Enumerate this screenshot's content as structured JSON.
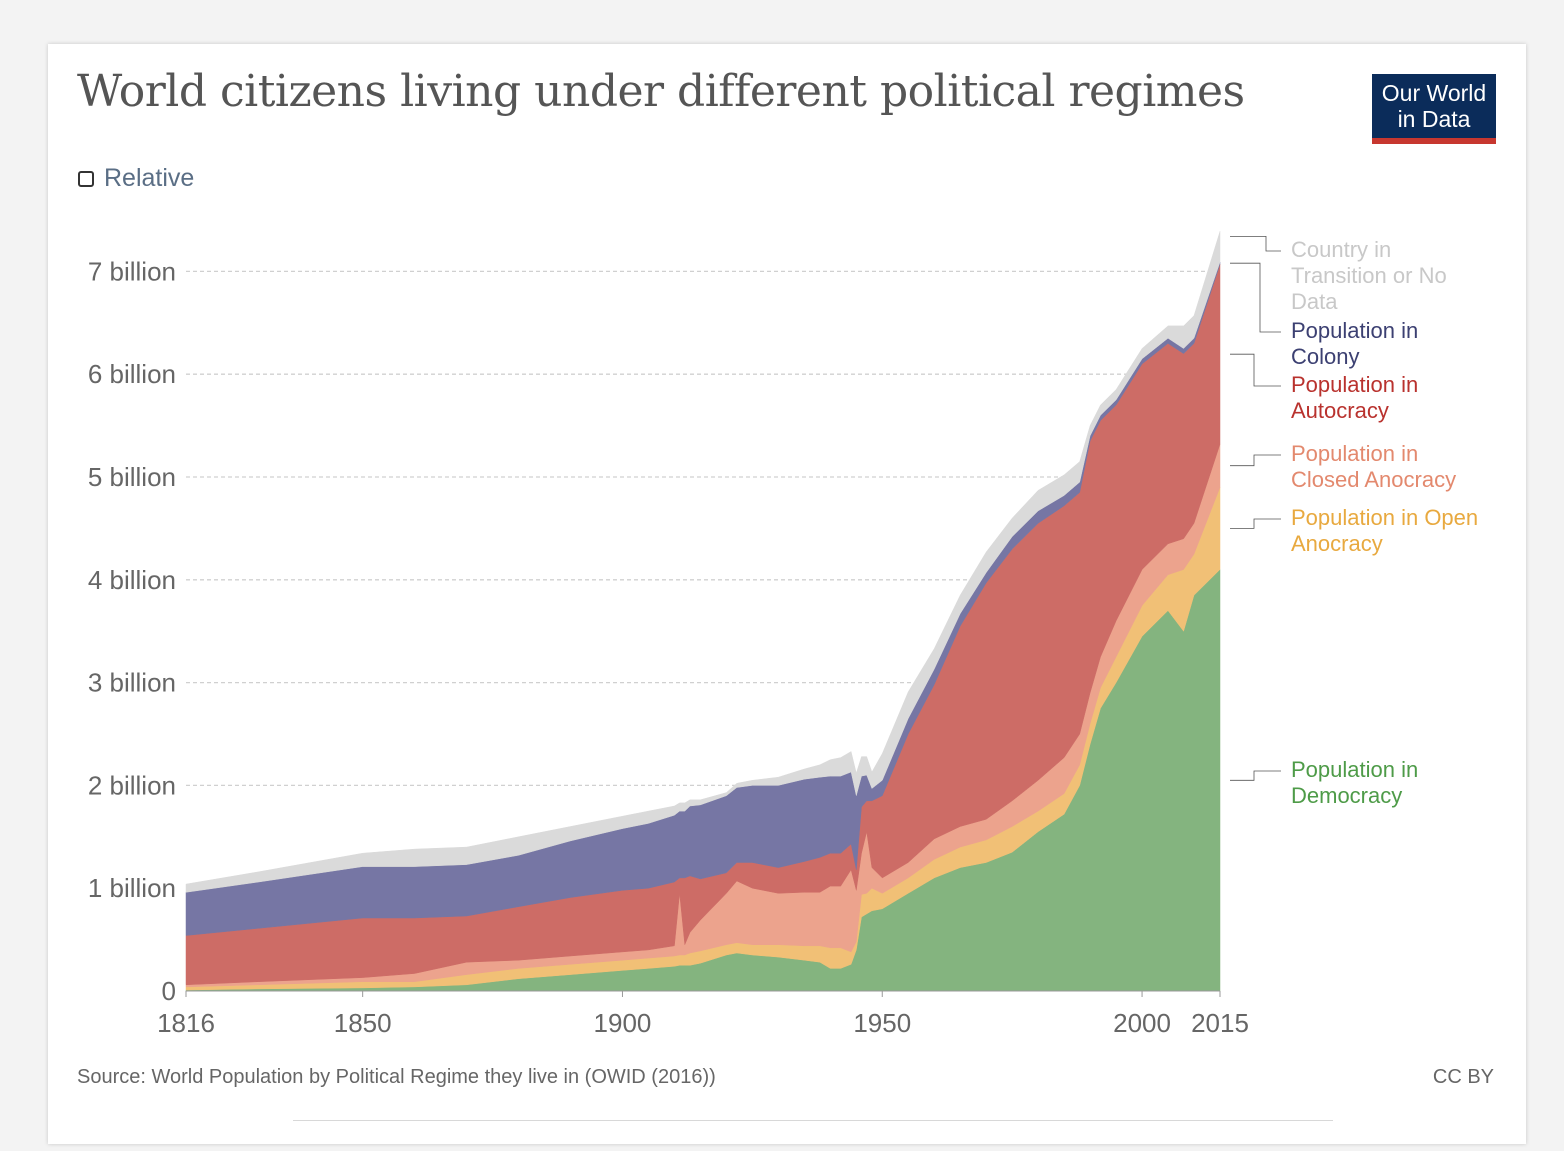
{
  "header": {
    "title": "World citizens living under different political regimes",
    "logo_line1": "Our World",
    "logo_line2": "in Data"
  },
  "controls": {
    "relative_label": "Relative",
    "relative_checked": false
  },
  "footer": {
    "source": "Source: World Population by Political Regime they live in (OWID (2016))",
    "license": "CC BY"
  },
  "chart_data": {
    "type": "area",
    "stacked": true,
    "title": "World citizens living under different political regimes",
    "xlabel": "",
    "ylabel": "",
    "xlim": [
      1816,
      2015
    ],
    "ylim": [
      0,
      7000000000
    ],
    "x_ticks": [
      "1816",
      "1850",
      "1900",
      "1950",
      "2000",
      "2015"
    ],
    "y_ticks": [
      "0",
      "1 billion",
      "2 billion",
      "3 billion",
      "4 billion",
      "5 billion",
      "6 billion",
      "7 billion"
    ],
    "grid": true,
    "legend_position": "right",
    "x": [
      1816,
      1830,
      1850,
      1860,
      1870,
      1880,
      1890,
      1900,
      1905,
      1910,
      1911,
      1912,
      1913,
      1915,
      1920,
      1922,
      1925,
      1930,
      1935,
      1938,
      1940,
      1942,
      1944,
      1945,
      1946,
      1947,
      1948,
      1950,
      1955,
      1960,
      1965,
      1970,
      1975,
      1980,
      1985,
      1988,
      1990,
      1992,
      1995,
      2000,
      2005,
      2008,
      2010,
      2015
    ],
    "series": [
      {
        "name": "Population in Democracy",
        "color": "#84b47f",
        "values": [
          0.01,
          0.02,
          0.03,
          0.04,
          0.06,
          0.12,
          0.16,
          0.2,
          0.22,
          0.24,
          0.25,
          0.25,
          0.25,
          0.27,
          0.35,
          0.37,
          0.35,
          0.33,
          0.3,
          0.28,
          0.22,
          0.22,
          0.26,
          0.4,
          0.72,
          0.75,
          0.78,
          0.8,
          0.95,
          1.1,
          1.2,
          1.25,
          1.35,
          1.55,
          1.72,
          2.0,
          2.4,
          2.75,
          3.0,
          3.45,
          3.7,
          3.5,
          3.85,
          4.1
        ]
      },
      {
        "name": "Population in Open Anocracy",
        "color": "#f1c076",
        "values": [
          0.03,
          0.04,
          0.06,
          0.05,
          0.1,
          0.1,
          0.1,
          0.1,
          0.1,
          0.1,
          0.1,
          0.1,
          0.12,
          0.12,
          0.1,
          0.1,
          0.1,
          0.12,
          0.14,
          0.16,
          0.2,
          0.2,
          0.12,
          0.08,
          0.22,
          0.2,
          0.22,
          0.15,
          0.15,
          0.18,
          0.2,
          0.22,
          0.25,
          0.2,
          0.2,
          0.2,
          0.2,
          0.2,
          0.25,
          0.3,
          0.35,
          0.6,
          0.4,
          0.8
        ]
      },
      {
        "name": "Population in Closed Anocracy",
        "color": "#eca38d",
        "values": [
          0.02,
          0.03,
          0.04,
          0.08,
          0.12,
          0.08,
          0.08,
          0.08,
          0.08,
          0.1,
          0.6,
          0.1,
          0.2,
          0.3,
          0.5,
          0.6,
          0.55,
          0.5,
          0.52,
          0.52,
          0.6,
          0.6,
          0.8,
          0.5,
          0.4,
          0.6,
          0.2,
          0.15,
          0.15,
          0.2,
          0.2,
          0.2,
          0.25,
          0.3,
          0.35,
          0.3,
          0.3,
          0.3,
          0.35,
          0.35,
          0.3,
          0.3,
          0.3,
          0.42
        ]
      },
      {
        "name": "Population in Autocracy",
        "color": "#cd6c66",
        "values": [
          0.48,
          0.52,
          0.58,
          0.54,
          0.45,
          0.52,
          0.57,
          0.6,
          0.6,
          0.62,
          0.15,
          0.65,
          0.55,
          0.4,
          0.2,
          0.18,
          0.25,
          0.25,
          0.3,
          0.34,
          0.32,
          0.32,
          0.25,
          0.2,
          0.45,
          0.3,
          0.65,
          0.8,
          1.25,
          1.5,
          1.95,
          2.3,
          2.45,
          2.5,
          2.45,
          2.35,
          2.45,
          2.3,
          2.1,
          2.0,
          1.95,
          1.8,
          1.75,
          1.75
        ]
      },
      {
        "name": "Population in Colony",
        "color": "#7676a4",
        "values": [
          0.42,
          0.45,
          0.5,
          0.5,
          0.5,
          0.5,
          0.55,
          0.6,
          0.63,
          0.65,
          0.65,
          0.65,
          0.68,
          0.72,
          0.75,
          0.73,
          0.75,
          0.8,
          0.8,
          0.78,
          0.75,
          0.75,
          0.7,
          0.72,
          0.3,
          0.25,
          0.12,
          0.15,
          0.15,
          0.15,
          0.12,
          0.1,
          0.12,
          0.12,
          0.1,
          0.1,
          0.05,
          0.05,
          0.05,
          0.05,
          0.05,
          0.05,
          0.05,
          0.02
        ]
      },
      {
        "name": "Country in Transition or No Data",
        "color": "#dadada",
        "values": [
          0.08,
          0.1,
          0.13,
          0.17,
          0.17,
          0.18,
          0.14,
          0.12,
          0.12,
          0.09,
          0.08,
          0.08,
          0.06,
          0.05,
          0.03,
          0.04,
          0.05,
          0.08,
          0.1,
          0.12,
          0.16,
          0.18,
          0.2,
          0.22,
          0.19,
          0.18,
          0.16,
          0.26,
          0.26,
          0.2,
          0.18,
          0.2,
          0.18,
          0.2,
          0.2,
          0.2,
          0.1,
          0.1,
          0.1,
          0.1,
          0.12,
          0.22,
          0.22,
          0.3
        ]
      }
    ],
    "value_unit_multiplier": 1000000000
  },
  "legend_labels": [
    {
      "text": "Country in Transition or No Data",
      "lines": [
        "Country in",
        "Transition or No",
        "Data"
      ],
      "color": "#c8c8c8"
    },
    {
      "text": "Population in Colony",
      "lines": [
        "Population in",
        "Colony"
      ],
      "color": "#3c4072"
    },
    {
      "text": "Population in Autocracy",
      "lines": [
        "Population in",
        "Autocracy"
      ],
      "color": "#b9322e"
    },
    {
      "text": "Population in Closed Anocracy",
      "lines": [
        "Population in",
        "Closed Anocracy"
      ],
      "color": "#e3896e"
    },
    {
      "text": "Population in Open Anocracy",
      "lines": [
        "Population in Open",
        "Anocracy"
      ],
      "color": "#e8a93f"
    },
    {
      "text": "Population in Democracy",
      "lines": [
        "Population in",
        "Democracy"
      ],
      "color": "#4e9b48"
    }
  ]
}
